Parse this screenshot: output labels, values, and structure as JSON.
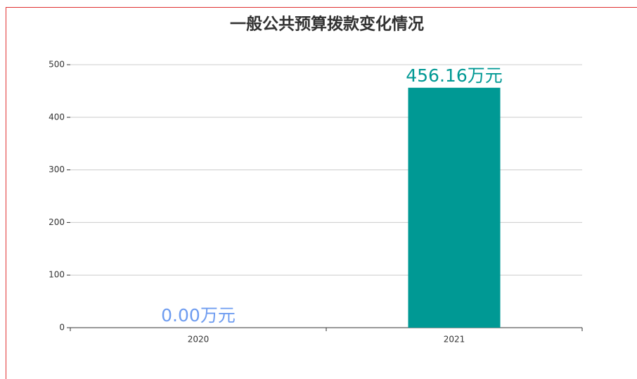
{
  "chart_data": {
    "type": "bar",
    "title": "一般公共预算拨款变化情况",
    "categories": [
      "2020",
      "2021"
    ],
    "values": [
      0,
      456.16
    ],
    "value_labels": [
      "0.00万元",
      "456.16万元"
    ],
    "colors": [
      "#6e9cf0",
      "#009994"
    ],
    "ylim": [
      0,
      500
    ],
    "yticks": [
      0,
      100,
      200,
      300,
      400,
      500
    ],
    "grid": true
  }
}
